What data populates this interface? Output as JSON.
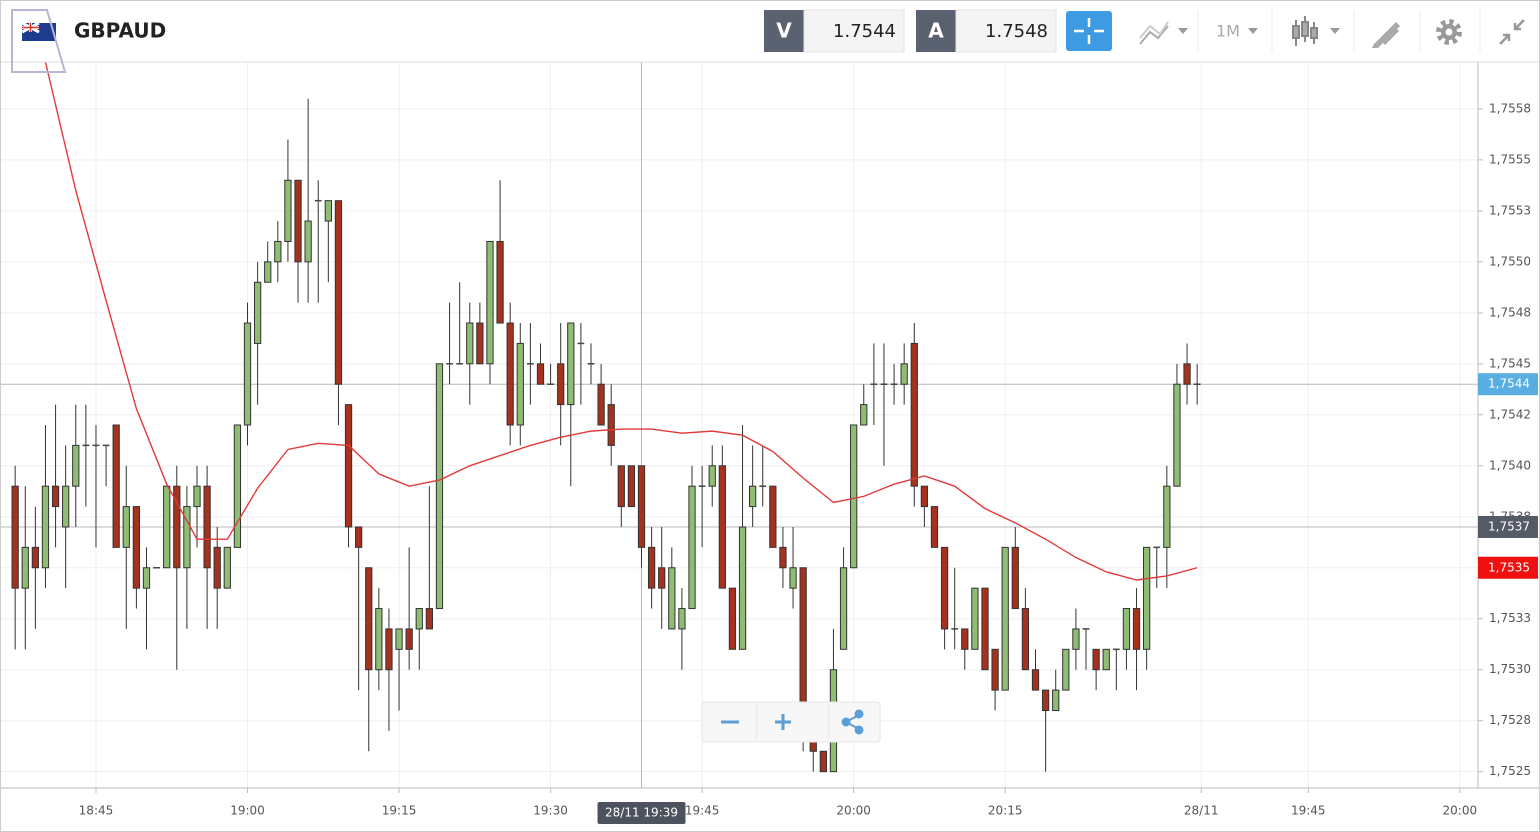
{
  "header": {
    "symbol": "GBPAUD",
    "sell_label": "V",
    "sell_price": "1.7544",
    "buy_label": "A",
    "buy_price": "1.7548",
    "timeframe": "1M"
  },
  "chart_data": {
    "type": "candlestick",
    "x": [
      1117,
      1118,
      1119,
      1120,
      1121,
      1122,
      1123,
      1124,
      1125,
      1126,
      1127,
      1128,
      1129,
      1130,
      1131,
      1132,
      1133,
      1134,
      1135,
      1136,
      1137,
      1138,
      1139,
      1140,
      1141,
      1142,
      1143,
      1144,
      1145,
      1146,
      1147,
      1148,
      1149,
      1150,
      1151,
      1152,
      1153,
      1154,
      1155,
      1156,
      1157,
      1158,
      1159,
      1160,
      1161,
      1162,
      1163,
      1164,
      1165,
      1166,
      1167,
      1168,
      1169,
      1170,
      1171,
      1172,
      1173,
      1174,
      1175,
      1176,
      1177,
      1178,
      1179,
      1180,
      1181,
      1182,
      1183,
      1184,
      1185,
      1186,
      1187,
      1188,
      1189,
      1190,
      1191,
      1192,
      1193,
      1194,
      1195,
      1196,
      1197,
      1198,
      1199,
      1200,
      1201,
      1202,
      1203,
      1204,
      1205,
      1206,
      1207,
      1208,
      1209,
      1210,
      1211,
      1212,
      1213,
      1214,
      1215,
      1216,
      1217,
      1218,
      1219,
      1220,
      1221,
      1222,
      1223,
      1224,
      1225,
      1226,
      1227,
      1228,
      1229,
      1230,
      1231,
      1232,
      1233,
      1234
    ],
    "open": [
      1.7539,
      1.7534,
      1.7536,
      1.7535,
      1.7539,
      1.7537,
      1.7539,
      1.7541,
      1.7541,
      1.7541,
      1.7542,
      1.7536,
      1.7538,
      1.7534,
      1.7535,
      1.7535,
      1.7539,
      1.7535,
      1.7538,
      1.7539,
      1.7536,
      1.7534,
      1.7536,
      1.7542,
      1.7546,
      1.7549,
      1.755,
      1.7551,
      1.7554,
      1.755,
      1.7553,
      1.7552,
      1.7553,
      1.7543,
      1.7537,
      1.7535,
      1.753,
      1.7532,
      1.7531,
      1.7532,
      1.7532,
      1.7533,
      1.7533,
      1.7545,
      1.7545,
      1.7545,
      1.7547,
      1.7545,
      1.7551,
      1.7547,
      1.7542,
      1.7545,
      1.7545,
      1.7544,
      1.7545,
      1.7543,
      1.7546,
      1.7545,
      1.7544,
      1.7543,
      1.754,
      1.754,
      1.754,
      1.7536,
      1.7535,
      1.7532,
      1.7532,
      1.7533,
      1.7539,
      1.7539,
      1.754,
      1.7534,
      1.7531,
      1.7538,
      1.7539,
      1.7539,
      1.7536,
      1.7534,
      1.7535,
      1.7527,
      1.7526,
      1.7525,
      1.7531,
      1.7535,
      1.7542,
      1.7544,
      1.7544,
      1.7544,
      1.7544,
      1.7546,
      1.7539,
      1.7538,
      1.7536,
      1.7532,
      1.7532,
      1.7531,
      1.7534,
      1.7531,
      1.7529,
      1.7536,
      1.7533,
      1.753,
      1.7529,
      1.7528,
      1.7529,
      1.7531,
      1.7532,
      1.7531,
      1.753,
      1.7531,
      1.7531,
      1.7533,
      1.7531,
      1.7536,
      1.7536,
      1.7539,
      1.7545,
      1.7544
    ],
    "high": [
      1.754,
      1.7539,
      1.7538,
      1.7542,
      1.7543,
      1.7541,
      1.7543,
      1.7543,
      1.7542,
      1.7541,
      1.7542,
      1.754,
      1.7538,
      1.7536,
      1.7535,
      1.7539,
      1.754,
      1.7539,
      1.754,
      1.754,
      1.7537,
      1.7536,
      1.7542,
      1.7548,
      1.755,
      1.7551,
      1.7552,
      1.7556,
      1.7554,
      1.7558,
      1.7554,
      1.7553,
      1.7553,
      1.7543,
      1.7537,
      1.7535,
      1.7534,
      1.7533,
      1.7532,
      1.7536,
      1.7533,
      1.7539,
      1.7545,
      1.7548,
      1.7549,
      1.7548,
      1.7548,
      1.7551,
      1.7554,
      1.7548,
      1.7547,
      1.7547,
      1.7546,
      1.7545,
      1.7547,
      1.7547,
      1.7547,
      1.7546,
      1.7545,
      1.7544,
      1.754,
      1.754,
      1.754,
      1.7537,
      1.7537,
      1.7536,
      1.7534,
      1.754,
      1.754,
      1.7541,
      1.7541,
      1.7534,
      1.7542,
      1.7541,
      1.7541,
      1.7539,
      1.7537,
      1.7537,
      1.7535,
      1.7527,
      1.7526,
      1.7532,
      1.7536,
      1.7542,
      1.7544,
      1.7546,
      1.7546,
      1.7545,
      1.7546,
      1.7547,
      1.7539,
      1.7538,
      1.7536,
      1.7535,
      1.7532,
      1.7534,
      1.7534,
      1.7531,
      1.7536,
      1.7537,
      1.7534,
      1.7531,
      1.7529,
      1.753,
      1.7531,
      1.7533,
      1.7532,
      1.7531,
      1.7531,
      1.7531,
      1.7533,
      1.7534,
      1.7536,
      1.7536,
      1.754,
      1.7545,
      1.7546,
      1.7545
    ],
    "low": [
      1.7531,
      1.7531,
      1.7532,
      1.7534,
      1.7536,
      1.7534,
      1.7537,
      1.7538,
      1.7536,
      1.7539,
      1.7536,
      1.7532,
      1.7533,
      1.7531,
      1.7535,
      1.7535,
      1.753,
      1.7532,
      1.7536,
      1.7532,
      1.7532,
      1.7534,
      1.7536,
      1.7541,
      1.7543,
      1.7549,
      1.7549,
      1.755,
      1.7548,
      1.7548,
      1.7548,
      1.7549,
      1.7542,
      1.7536,
      1.7529,
      1.7526,
      1.7529,
      1.7527,
      1.7528,
      1.753,
      1.753,
      1.7532,
      1.7533,
      1.7544,
      1.7545,
      1.7543,
      1.7545,
      1.7544,
      1.7547,
      1.7541,
      1.7541,
      1.7543,
      1.7544,
      1.7544,
      1.7541,
      1.7539,
      1.7543,
      1.7544,
      1.7542,
      1.754,
      1.7537,
      1.7538,
      1.7535,
      1.7533,
      1.7532,
      1.7532,
      1.753,
      1.7533,
      1.7536,
      1.7538,
      1.7534,
      1.7531,
      1.7531,
      1.7537,
      1.7538,
      1.7536,
      1.7534,
      1.7533,
      1.7526,
      1.7525,
      1.7525,
      1.7525,
      1.7531,
      1.7535,
      1.7542,
      1.7542,
      1.754,
      1.7543,
      1.7543,
      1.7538,
      1.7537,
      1.7536,
      1.7531,
      1.7531,
      1.753,
      1.7531,
      1.753,
      1.7528,
      1.7529,
      1.7533,
      1.753,
      1.7529,
      1.7525,
      1.7528,
      1.7529,
      1.753,
      1.753,
      1.7529,
      1.753,
      1.7529,
      1.753,
      1.7529,
      1.753,
      1.7534,
      1.7534,
      1.7539,
      1.7543,
      1.7543
    ],
    "close": [
      1.7534,
      1.7536,
      1.7535,
      1.7539,
      1.7538,
      1.7539,
      1.7541,
      1.7541,
      1.7541,
      1.7541,
      1.7536,
      1.7538,
      1.7534,
      1.7535,
      1.7535,
      1.7539,
      1.7535,
      1.7538,
      1.7539,
      1.7535,
      1.7534,
      1.7536,
      1.7542,
      1.7547,
      1.7549,
      1.755,
      1.7551,
      1.7554,
      1.755,
      1.7552,
      1.7553,
      1.7553,
      1.7544,
      1.7537,
      1.7536,
      1.753,
      1.7533,
      1.753,
      1.7532,
      1.7531,
      1.7533,
      1.7532,
      1.7545,
      1.7545,
      1.7545,
      1.7547,
      1.7545,
      1.7551,
      1.7547,
      1.7542,
      1.7546,
      1.7545,
      1.7544,
      1.7544,
      1.7543,
      1.7547,
      1.7546,
      1.7545,
      1.7542,
      1.7541,
      1.7538,
      1.7538,
      1.7536,
      1.7534,
      1.7534,
      1.7535,
      1.7533,
      1.7539,
      1.7539,
      1.754,
      1.7534,
      1.7531,
      1.7537,
      1.7539,
      1.7539,
      1.7536,
      1.7535,
      1.7535,
      1.7527,
      1.7526,
      1.7525,
      1.753,
      1.7535,
      1.7542,
      1.7543,
      1.7544,
      1.7544,
      1.7544,
      1.7545,
      1.7539,
      1.7538,
      1.7536,
      1.7532,
      1.7532,
      1.7531,
      1.7534,
      1.753,
      1.7529,
      1.7536,
      1.7533,
      1.753,
      1.7529,
      1.7528,
      1.7529,
      1.7531,
      1.7532,
      1.7532,
      1.753,
      1.7531,
      1.7531,
      1.7533,
      1.7531,
      1.7536,
      1.7536,
      1.7539,
      1.7544,
      1.7544,
      1.7544
    ],
    "up_color": "#8fbd73",
    "down_color": "#a5321f",
    "flat_color": "#444444",
    "overlay": {
      "color": "#e23a3a",
      "x": [
        1120,
        1123,
        1126,
        1129,
        1132,
        1135,
        1138,
        1141,
        1144,
        1147,
        1150,
        1153,
        1156,
        1159,
        1162,
        1165,
        1168,
        1171,
        1174,
        1177,
        1180,
        1183,
        1186,
        1189,
        1192,
        1195,
        1198,
        1201,
        1204,
        1207,
        1210,
        1213,
        1216,
        1219,
        1222,
        1225,
        1228,
        1231,
        1234
      ],
      "values": [
        1.75598,
        1.75535,
        1.75481,
        1.75428,
        1.75391,
        1.75364,
        1.75364,
        1.75389,
        1.75408,
        1.75411,
        1.7541,
        1.75396,
        1.7539,
        1.75393,
        1.754,
        1.75405,
        1.7541,
        1.75414,
        1.75417,
        1.75418,
        1.75418,
        1.75416,
        1.75417,
        1.75415,
        1.75407,
        1.75394,
        1.75382,
        1.75385,
        1.75391,
        1.75395,
        1.7539,
        1.75379,
        1.75372,
        1.75364,
        1.75355,
        1.75348,
        1.75344,
        1.75346,
        1.7535
      ]
    },
    "price_markers": [
      {
        "value": 1.7544,
        "label": "1,7544",
        "color": "#58aee0",
        "line": true
      },
      {
        "value": 1.7537,
        "label": "1,7537",
        "color": "#555b66",
        "line": true
      },
      {
        "value": 1.7535,
        "label": "1,7535",
        "color": "#f01010",
        "line": false
      }
    ],
    "crosshair": {
      "x": 1179,
      "label": "28/11 19:39"
    },
    "xlim": [
      1115.5,
      1261.8
    ],
    "xticks": [
      {
        "value": 1125,
        "label": "18:45"
      },
      {
        "value": 1140,
        "label": "19:00"
      },
      {
        "value": 1155,
        "label": "19:15"
      },
      {
        "value": 1170,
        "label": "19:30"
      },
      {
        "value": 1185,
        "label": "19:45"
      },
      {
        "value": 1200,
        "label": "20:00"
      },
      {
        "value": 1215,
        "label": "20:15"
      },
      {
        "value": 1234.4,
        "label": "28/11"
      },
      {
        "value": 1245,
        "label": "19:45"
      },
      {
        "value": 1260,
        "label": "20:00"
      }
    ],
    "ylim": [
      1.75242,
      1.75598
    ],
    "yticks": [
      {
        "value": 1.75575,
        "label": "1,7558"
      },
      {
        "value": 1.7555,
        "label": "1,7555"
      },
      {
        "value": 1.75525,
        "label": "1,7553"
      },
      {
        "value": 1.755,
        "label": "1,7550"
      },
      {
        "value": 1.75475,
        "label": "1,7548"
      },
      {
        "value": 1.7545,
        "label": "1,7545"
      },
      {
        "value": 1.75425,
        "label": "1,7542"
      },
      {
        "value": 1.754,
        "label": "1,7540"
      },
      {
        "value": 1.75375,
        "label": "1,7538"
      },
      {
        "value": 1.7535,
        "label": "1,7535"
      },
      {
        "value": 1.75325,
        "label": "1,7533"
      },
      {
        "value": 1.753,
        "label": "1,7530"
      },
      {
        "value": 1.75275,
        "label": "1,7528"
      },
      {
        "value": 1.7525,
        "label": "1,7525"
      }
    ],
    "grid": true
  }
}
